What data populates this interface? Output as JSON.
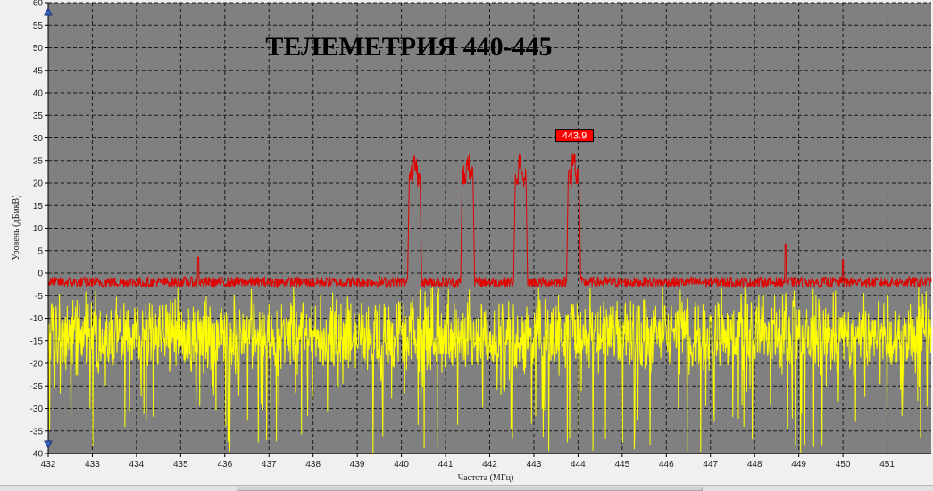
{
  "chart_data": {
    "type": "line",
    "title": "ТЕЛЕМЕТРИЯ 440-445",
    "xlabel": "Частота (МГц)",
    "ylabel": "Уровень (дБмкВ)",
    "xlim": [
      432,
      452
    ],
    "ylim": [
      -40,
      60
    ],
    "x_ticks": [
      "432",
      "433",
      "434",
      "435",
      "436",
      "437",
      "438",
      "439",
      "440",
      "441",
      "442",
      "443",
      "444",
      "445",
      "446",
      "447",
      "448",
      "449",
      "450",
      "451"
    ],
    "y_ticks": [
      "60",
      "55",
      "50",
      "45",
      "40",
      "35",
      "30",
      "25",
      "20",
      "15",
      "10",
      "5",
      "0",
      "-5",
      "-10",
      "-15",
      "-20",
      "-25",
      "-30",
      "-35",
      "-40"
    ],
    "grid": true,
    "series": [
      {
        "color": "#e00000",
        "baseline": -2,
        "peaks": [
          {
            "x": 440.3,
            "y": 28
          },
          {
            "x": 441.5,
            "y": 28
          },
          {
            "x": 442.7,
            "y": 28
          },
          {
            "x": 443.9,
            "y": 28
          }
        ],
        "spikes": [
          {
            "x": 435.4,
            "y": 3.5
          },
          {
            "x": 448.7,
            "y": 6.5
          },
          {
            "x": 450.0,
            "y": 3.0
          }
        ]
      },
      {
        "color": "#ffff00",
        "baseline": -14,
        "min": -40,
        "max": -3
      }
    ],
    "marker": {
      "x": 443.9,
      "y": 28,
      "label": "443.9",
      "color": "#ff0000"
    },
    "plot_background": "#808080"
  }
}
